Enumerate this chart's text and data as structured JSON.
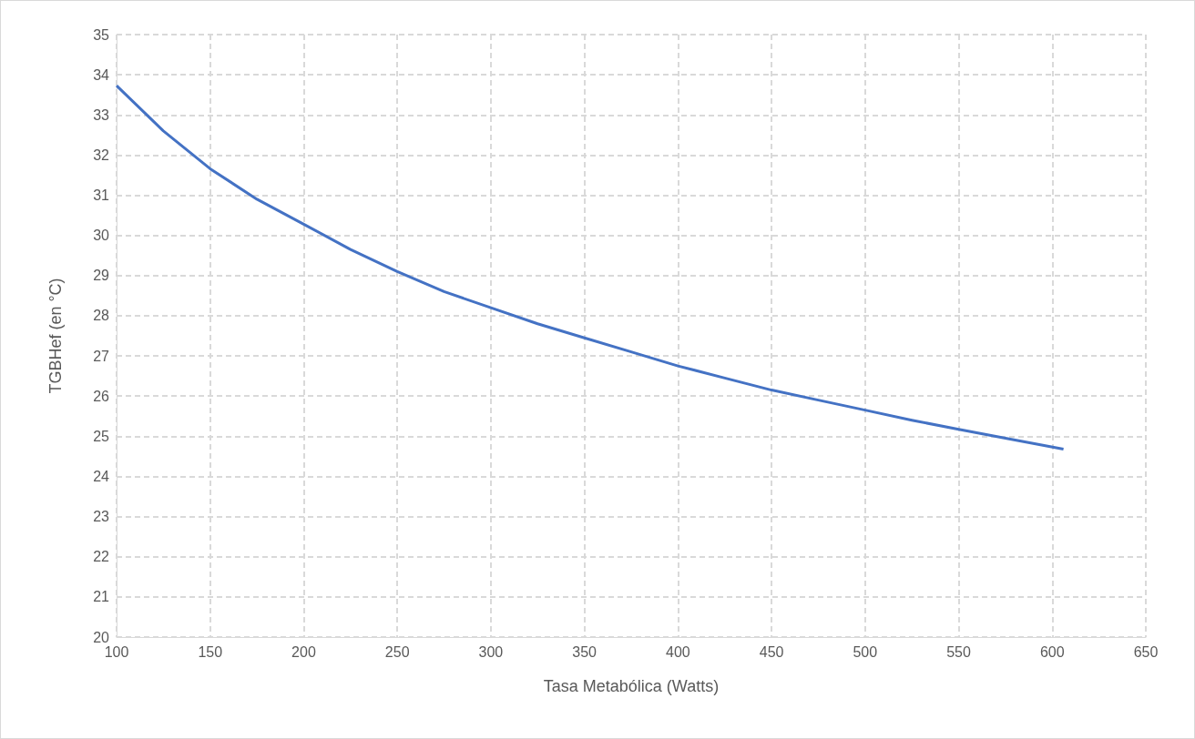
{
  "chart_data": {
    "type": "line",
    "xlabel": "Tasa Metabólica (Watts)",
    "ylabel": "TGBHef (en °C)",
    "x": [
      100,
      125,
      150,
      175,
      200,
      225,
      250,
      275,
      300,
      325,
      350,
      375,
      400,
      425,
      450,
      475,
      500,
      525,
      550,
      575,
      606
    ],
    "series": [
      {
        "color": "#4472c4",
        "values": [
          33.73,
          32.6,
          31.66,
          30.9,
          30.28,
          29.65,
          29.1,
          28.6,
          28.2,
          27.8,
          27.45,
          27.1,
          26.75,
          26.45,
          26.15,
          25.9,
          25.65,
          25.4,
          25.17,
          24.95,
          24.68
        ]
      }
    ],
    "xlim": [
      100,
      650
    ],
    "xticks": [
      100,
      150,
      200,
      250,
      300,
      350,
      400,
      450,
      500,
      550,
      600,
      650
    ],
    "ylim": [
      20,
      35
    ],
    "yticks": [
      20,
      21,
      22,
      23,
      24,
      25,
      26,
      27,
      28,
      29,
      30,
      31,
      32,
      33,
      34,
      35
    ],
    "grid": true,
    "marker": "none",
    "line_style": "solid"
  }
}
